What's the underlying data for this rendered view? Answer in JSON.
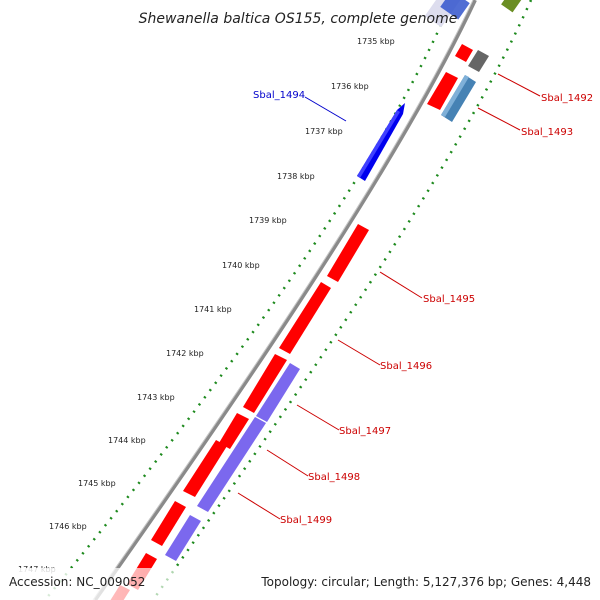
{
  "title": "Shewanella baltica OS155, complete genome",
  "footer": {
    "accession": "Accession: NC_009052",
    "topology": "Topology: circular; Length: 5,127,376 bp; Genes: 4,448"
  },
  "ticks": [
    {
      "label": "1735 kbp"
    },
    {
      "label": "1736 kbp"
    },
    {
      "label": "1737 kbp"
    },
    {
      "label": "1738 kbp"
    },
    {
      "label": "1739 kbp"
    },
    {
      "label": "1740 kbp"
    },
    {
      "label": "1741 kbp"
    },
    {
      "label": "1742 kbp"
    },
    {
      "label": "1743 kbp"
    },
    {
      "label": "1744 kbp"
    },
    {
      "label": "1745 kbp"
    },
    {
      "label": "1746 kbp"
    },
    {
      "label": "1747 kbp"
    }
  ],
  "gene_labels": [
    {
      "label": "Sbal_1494",
      "color": "#0000cc"
    },
    {
      "label": "Sbal_1492",
      "color": "#cc0000"
    },
    {
      "label": "Sbal_1493",
      "color": "#cc0000"
    },
    {
      "label": "Sbal_1495",
      "color": "#cc0000"
    },
    {
      "label": "Sbal_1496",
      "color": "#cc0000"
    },
    {
      "label": "Sbal_1497",
      "color": "#cc0000"
    },
    {
      "label": "Sbal_1498",
      "color": "#cc0000"
    },
    {
      "label": "Sbal_1499",
      "color": "#cc0000"
    }
  ],
  "colors": {
    "backbone": "#8a8a8a",
    "dotted": "#1e8a1e",
    "cds_red": "#ff0000",
    "cds_blue": "#0000ee",
    "cds_purple": "#7b68ee",
    "cds_steel": "#4682b4",
    "cds_gray": "#666666",
    "cds_olive": "#6b8e23"
  }
}
